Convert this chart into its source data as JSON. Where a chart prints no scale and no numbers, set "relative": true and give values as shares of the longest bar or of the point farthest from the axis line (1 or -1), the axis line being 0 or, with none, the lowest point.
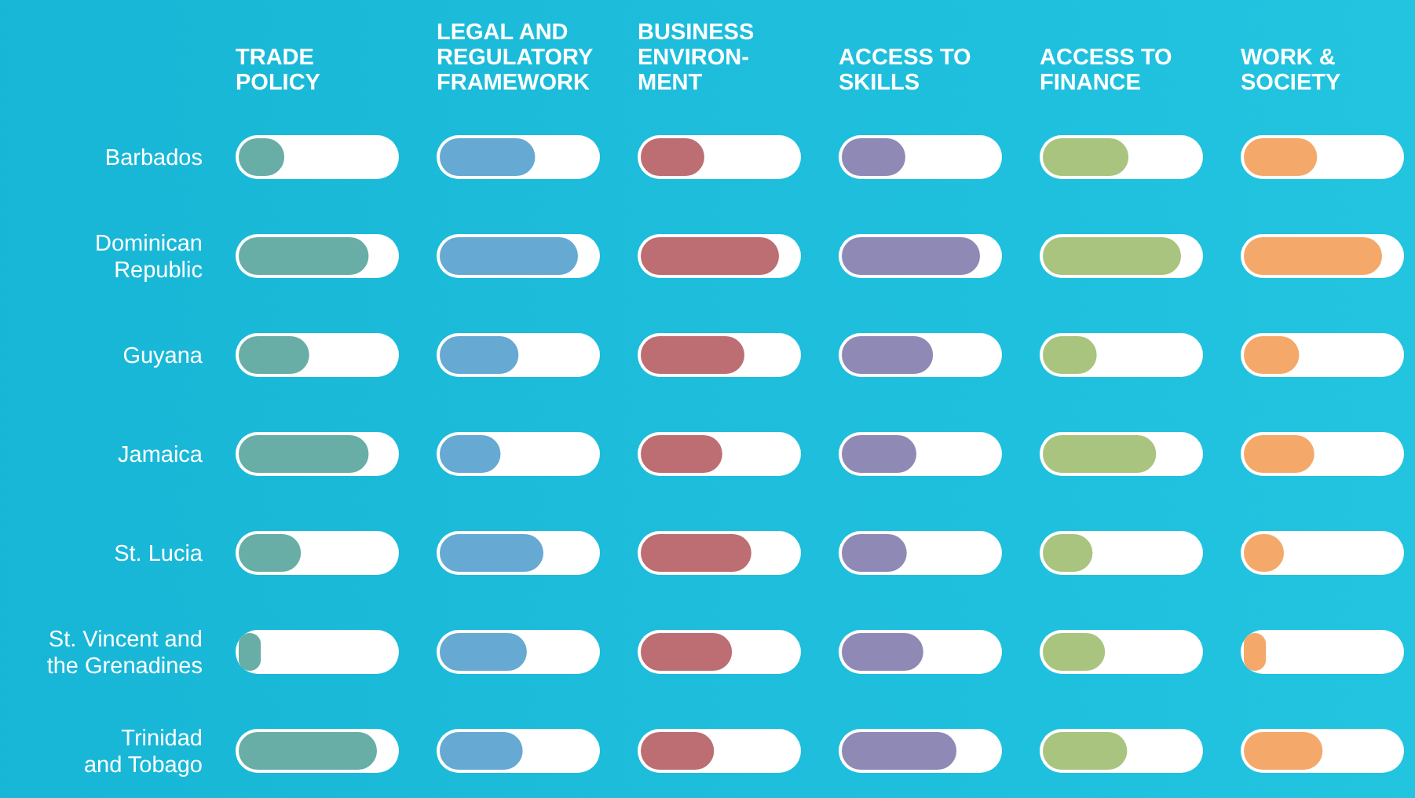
{
  "chart_data": [
    {
      "type": "bar",
      "orientation": "horizontal",
      "relative": true,
      "title": "TRADE\nPOLICY",
      "categories": [
        "Barbados",
        "Dominican\nRepublic",
        "Guyana",
        "Jamaica",
        "St. Lucia",
        "St. Vincent and\nthe Grenadines",
        "Trinidad\nand Tobago"
      ],
      "values": [
        0.33,
        0.94,
        0.51,
        0.94,
        0.45,
        0.16,
        1
      ],
      "color": "#68aea6"
    },
    {
      "type": "bar",
      "orientation": "horizontal",
      "relative": true,
      "title": "LEGAL AND\nREGULATORY\nFRAMEWORK",
      "values": [
        0.69,
        1,
        0.57,
        0.44,
        0.75,
        0.63,
        0.6
      ],
      "color": "#66a9d2"
    },
    {
      "type": "bar",
      "orientation": "horizontal",
      "relative": true,
      "title": "BUSINESS\nENVIRON-\nMENT",
      "values": [
        0.46,
        1,
        0.75,
        0.59,
        0.8,
        0.66,
        0.53
      ],
      "color": "#bd6e73"
    },
    {
      "type": "bar",
      "orientation": "horizontal",
      "relative": true,
      "title": "ACCESS TO\nSKILLS",
      "values": [
        0.46,
        1,
        0.66,
        0.54,
        0.47,
        0.59,
        0.83
      ],
      "color": "#8f89b6"
    },
    {
      "type": "bar",
      "orientation": "horizontal",
      "relative": true,
      "title": "ACCESS TO\nFINANCE",
      "values": [
        0.62,
        1,
        0.39,
        0.82,
        0.36,
        0.45,
        0.61
      ],
      "color": "#a9c47f"
    },
    {
      "type": "bar",
      "orientation": "horizontal",
      "relative": true,
      "title": "WORK &\nSOCIETY",
      "values": [
        0.53,
        1,
        0.4,
        0.51,
        0.29,
        0.16,
        0.57
      ],
      "color": "#f4a96a"
    }
  ]
}
